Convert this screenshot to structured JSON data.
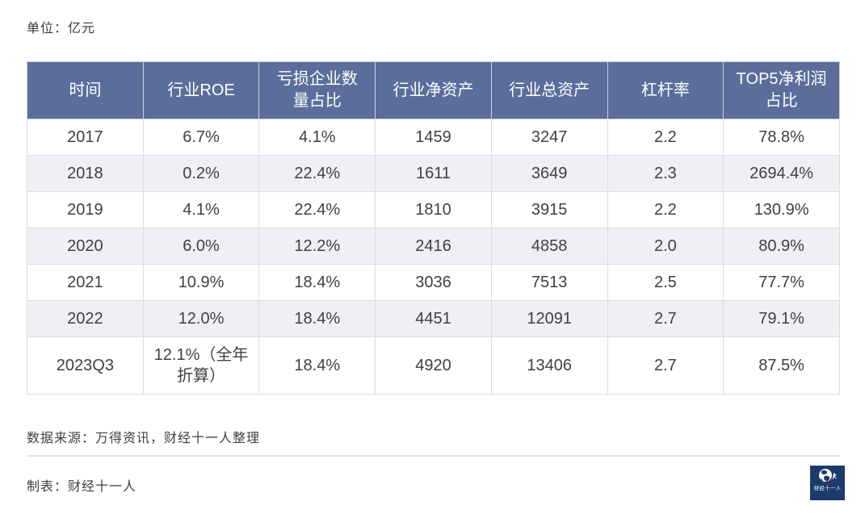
{
  "page": {
    "unit_label": "单位：亿元",
    "source_note": "数据来源：万得资讯，财经十一人整理",
    "credit_note": "制表：财经十一人",
    "logo_text": "财经十一人"
  },
  "chart_data": {
    "type": "table",
    "title": "",
    "unit": "亿元",
    "columns": [
      "时间",
      "行业ROE",
      "亏损企业数量占比",
      "行业净资产",
      "行业总资产",
      "杠杆率",
      "TOP5净利润占比"
    ],
    "rows": [
      [
        "2017",
        "6.7%",
        "4.1%",
        "1459",
        "3247",
        "2.2",
        "78.8%"
      ],
      [
        "2018",
        "0.2%",
        "22.4%",
        "1611",
        "3649",
        "2.3",
        "2694.4%"
      ],
      [
        "2019",
        "4.1%",
        "22.4%",
        "1810",
        "3915",
        "2.2",
        "130.9%"
      ],
      [
        "2020",
        "6.0%",
        "12.2%",
        "2416",
        "4858",
        "2.0",
        "80.9%"
      ],
      [
        "2021",
        "10.9%",
        "18.4%",
        "3036",
        "7513",
        "2.5",
        "77.7%"
      ],
      [
        "2022",
        "12.0%",
        "18.4%",
        "4451",
        "12091",
        "2.7",
        "79.1%"
      ],
      [
        "2023Q3",
        "12.1%（全年折算）",
        "18.4%",
        "4920",
        "13406",
        "2.7",
        "87.5%"
      ]
    ],
    "layout": {
      "zebra_striping": true,
      "alt_rows": [
        1,
        3,
        5
      ],
      "header_position": "top"
    }
  },
  "colors": {
    "header_bg": "#5b6e9b",
    "header_text": "#ffffff",
    "row_alt_bg": "#eef0f4",
    "logo_bg": "#1d3a6d",
    "accent_red": "#c43131"
  }
}
